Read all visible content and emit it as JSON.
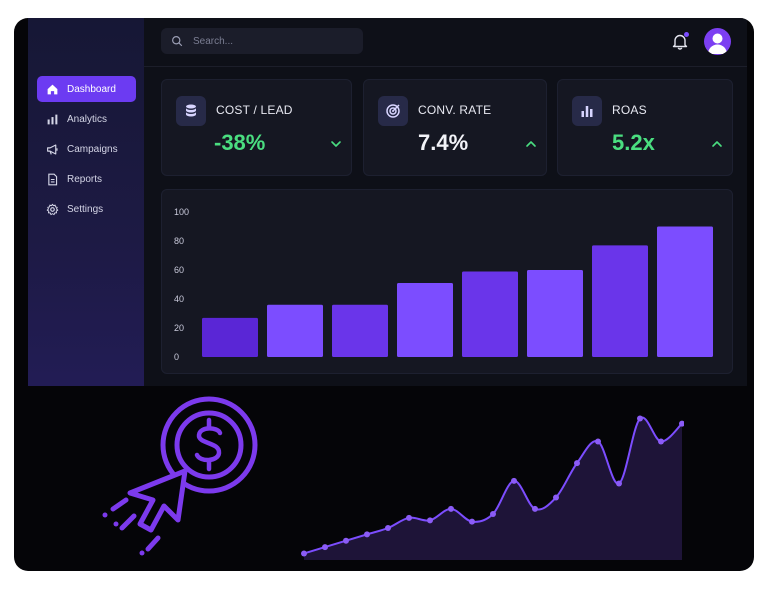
{
  "sidebar": {
    "items": [
      {
        "label": "Dashboard",
        "icon": "home-icon",
        "active": true
      },
      {
        "label": "Analytics",
        "icon": "bar-chart-icon",
        "active": false
      },
      {
        "label": "Campaigns",
        "icon": "megaphone-icon",
        "active": false
      },
      {
        "label": "Reports",
        "icon": "document-icon",
        "active": false
      },
      {
        "label": "Settings",
        "icon": "gear-icon",
        "active": false
      }
    ]
  },
  "search": {
    "placeholder": "Search..."
  },
  "kpis": [
    {
      "label": "COST / LEAD",
      "value": "-38%",
      "trend": "down",
      "icon": "database-icon"
    },
    {
      "label": "CONV. RATE",
      "value": "7.4%",
      "trend": "up",
      "icon": "target-icon"
    },
    {
      "label": "ROAS",
      "value": "5.2x",
      "trend": "up",
      "icon": "bar-chart-icon"
    }
  ],
  "colors": {
    "accent": "#6c3bf2",
    "positive": "#4ade80",
    "bar_dark": "#5a26d6",
    "bar_light": "#7c4dff"
  },
  "chart_data": [
    {
      "type": "bar",
      "categories": [
        "",
        "",
        "",
        "",
        "",
        "",
        "",
        ""
      ],
      "values": [
        27,
        36,
        36,
        51,
        59,
        60,
        77,
        90
      ],
      "yticks": [
        "0",
        "20",
        "40",
        "60",
        "80",
        "100"
      ],
      "ylim": [
        0,
        100
      ],
      "grid": false
    },
    {
      "type": "area",
      "x": [
        0,
        1,
        2,
        3,
        4,
        5,
        6,
        7,
        8,
        9,
        10,
        11,
        12,
        13,
        14,
        15,
        16,
        17,
        18
      ],
      "values": [
        2,
        7,
        12,
        17,
        22,
        30,
        28,
        37,
        27,
        33,
        59,
        37,
        46,
        73,
        90,
        57,
        108,
        90,
        104
      ],
      "ylim": [
        0,
        110
      ]
    }
  ]
}
